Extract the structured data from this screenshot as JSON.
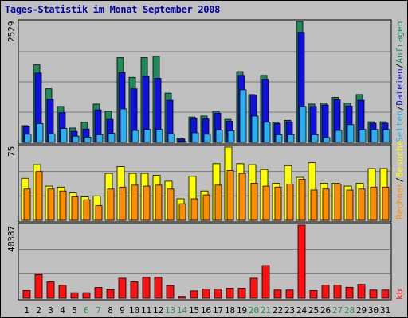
{
  "title": "Tages-Statistik im Monat September 2008",
  "panels": {
    "top": {
      "scale_label": "2529"
    },
    "mid": {
      "scale_label": "75"
    },
    "bot": {
      "scale_label": "40387"
    }
  },
  "legend_right": {
    "row1": [
      "Anfragen",
      "Dateien",
      "Seiten"
    ],
    "row1_separator": "/",
    "row2": [
      "Besuche"
    ],
    "row3": [
      "Rechner"
    ],
    "kb": "kb"
  },
  "colors": {
    "anfragen": "#1e8a5a",
    "dateien": "#1010e0",
    "seiten": "#28b0f0",
    "besuche": "#ffff00",
    "rechner": "#ff8c00",
    "kb": "#ff1010",
    "weekend_label": "#2f8f4f",
    "weekday_label": "#000000",
    "title": "#0000a0"
  },
  "chart_data": [
    {
      "type": "bar",
      "title": "Tages-Statistik im Monat September 2008",
      "categories": [
        "1",
        "2",
        "3",
        "4",
        "5",
        "6",
        "7",
        "8",
        "9",
        "10",
        "11",
        "12",
        "13",
        "14",
        "15",
        "16",
        "17",
        "18",
        "19",
        "20",
        "21",
        "22",
        "23",
        "24",
        "25",
        "26",
        "27",
        "28",
        "29",
        "30",
        "31"
      ],
      "weekend_days": [
        "6",
        "7",
        "13",
        "14",
        "20",
        "21",
        "27",
        "28"
      ],
      "ylim": [
        0,
        2529
      ],
      "series": [
        {
          "name": "Anfragen",
          "values": [
            350,
            1620,
            1120,
            750,
            300,
            420,
            800,
            650,
            1770,
            1360,
            1770,
            1800,
            1030,
            90,
            530,
            550,
            650,
            480,
            1480,
            1000,
            1400,
            420,
            460,
            2529,
            800,
            820,
            940,
            820,
            1000,
            430,
            430
          ]
        },
        {
          "name": "Dateien",
          "values": [
            330,
            1450,
            900,
            620,
            230,
            280,
            680,
            480,
            1460,
            1120,
            1380,
            1340,
            880,
            70,
            500,
            490,
            610,
            440,
            1400,
            990,
            1320,
            390,
            430,
            2300,
            750,
            780,
            890,
            760,
            880,
            400,
            400
          ]
        },
        {
          "name": "Seiten",
          "values": [
            170,
            390,
            180,
            290,
            130,
            110,
            160,
            190,
            700,
            250,
            270,
            270,
            180,
            20,
            200,
            170,
            260,
            240,
            1100,
            550,
            420,
            160,
            160,
            750,
            160,
            100,
            250,
            370,
            270,
            270,
            270
          ]
        }
      ]
    },
    {
      "type": "bar",
      "ylim": [
        0,
        75
      ],
      "series": [
        {
          "name": "Besuche",
          "values": [
            43,
            57,
            35,
            34,
            28,
            24,
            25,
            48,
            55,
            48,
            48,
            46,
            40,
            22,
            45,
            30,
            58,
            75,
            58,
            57,
            52,
            38,
            56,
            44,
            59,
            38,
            38,
            35,
            38,
            53,
            53
          ]
        },
        {
          "name": "Rechner",
          "values": [
            32,
            50,
            32,
            30,
            24,
            21,
            15,
            32,
            34,
            36,
            35,
            36,
            32,
            17,
            22,
            26,
            36,
            51,
            48,
            38,
            35,
            34,
            37,
            42,
            31,
            32,
            37,
            31,
            32,
            34,
            34
          ]
        }
      ]
    },
    {
      "type": "bar",
      "ylim": [
        0,
        40387
      ],
      "series": [
        {
          "name": "kb",
          "values": [
            4200,
            13000,
            9000,
            7100,
            3000,
            3000,
            5900,
            4700,
            11000,
            9000,
            11500,
            11500,
            7000,
            1000,
            4000,
            5000,
            5000,
            5500,
            5500,
            11000,
            18000,
            4500,
            4500,
            40387,
            4200,
            7200,
            7200,
            6000,
            7600,
            4500,
            4500
          ]
        }
      ]
    }
  ]
}
